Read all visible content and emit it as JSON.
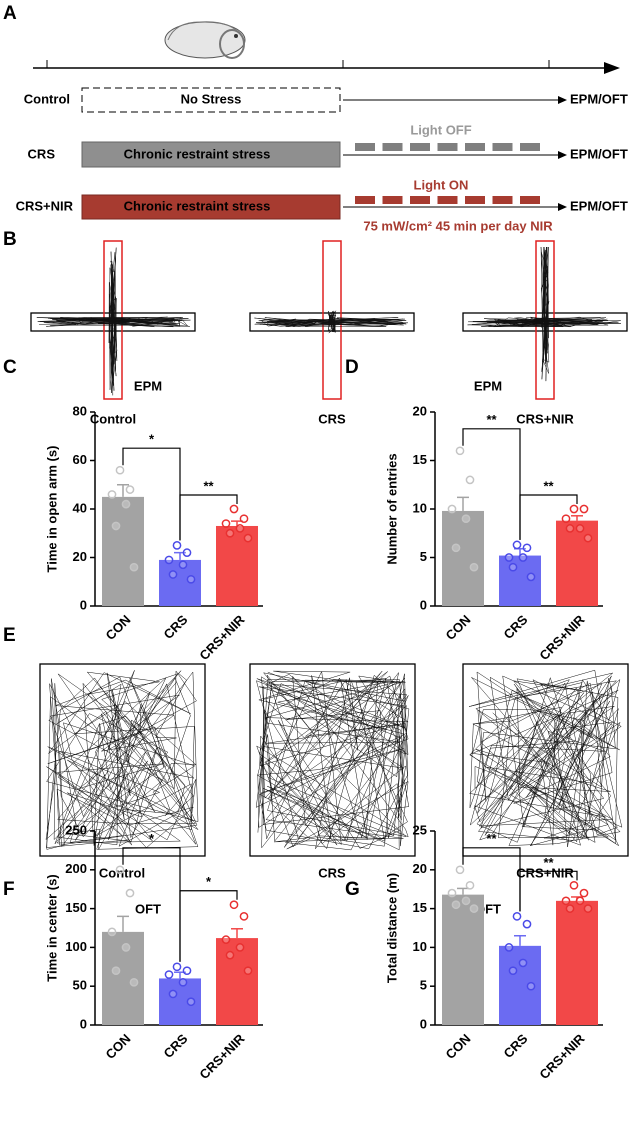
{
  "panels": {
    "a": "A",
    "b": "B",
    "c": "C",
    "d": "D",
    "e": "E",
    "f": "F",
    "g": "G"
  },
  "timeline": {
    "rows": [
      {
        "label": "Control",
        "bar_text": "No Stress",
        "end": "EPM/OFT"
      },
      {
        "label": "CRS",
        "bar_text": "Chronic restraint stress",
        "light": "Light OFF",
        "end": "EPM/OFT"
      },
      {
        "label": "CRS+NIR",
        "bar_text": "Chronic restraint stress",
        "light": "Light ON",
        "note": "75 mW/cm² 45 min per day NIR",
        "end": "EPM/OFT"
      }
    ]
  },
  "epm_tracks": {
    "labels": [
      "Control",
      "CRS",
      "CRS+NIR"
    ]
  },
  "oft_tracks": {
    "labels": [
      "Control",
      "CRS",
      "CRS+NIR"
    ]
  },
  "chart_data": [
    {
      "type": "bar",
      "title": "EPM",
      "y_label": "Time in open arm (s)",
      "categories": [
        "CON",
        "CRS",
        "CRS+NIR"
      ],
      "values": [
        45,
        19,
        33
      ],
      "errors": [
        5,
        3,
        2
      ],
      "points": [
        [
          56,
          48,
          46,
          42,
          33,
          16
        ],
        [
          25,
          22,
          19,
          17,
          13,
          11
        ],
        [
          40,
          36,
          34,
          32,
          30,
          28
        ]
      ],
      "colors": [
        "#a3a3a3",
        "#6b6bf2",
        "#f24848"
      ],
      "point_colors": [
        "#c4c4c4",
        "#4a4ae8",
        "#e83030"
      ],
      "ylim": [
        0,
        80
      ],
      "yticks": [
        0,
        20,
        40,
        60,
        80
      ],
      "significance": [
        "*",
        "**"
      ]
    },
    {
      "type": "bar",
      "title": "EPM",
      "y_label": "Number of entries",
      "categories": [
        "CON",
        "CRS",
        "CRS+NIR"
      ],
      "values": [
        9.8,
        5.2,
        8.8
      ],
      "errors": [
        1.4,
        0.7,
        0.5
      ],
      "points": [
        [
          16,
          13,
          10,
          9,
          6,
          4
        ],
        [
          6.3,
          6,
          5,
          5,
          4,
          3
        ],
        [
          10,
          10,
          9,
          8,
          8,
          7
        ]
      ],
      "colors": [
        "#a3a3a3",
        "#6b6bf2",
        "#f24848"
      ],
      "point_colors": [
        "#c4c4c4",
        "#4a4ae8",
        "#e83030"
      ],
      "ylim": [
        0,
        20
      ],
      "yticks": [
        0,
        5,
        10,
        15,
        20
      ],
      "significance": [
        "**",
        "**"
      ]
    },
    {
      "type": "bar",
      "title": "OFT",
      "y_label": "Time in center  (s)",
      "categories": [
        "CON",
        "CRS",
        "CRS+NIR"
      ],
      "values": [
        120,
        60,
        112
      ],
      "errors": [
        20,
        8,
        12
      ],
      "points": [
        [
          200,
          170,
          120,
          100,
          70,
          55
        ],
        [
          75,
          70,
          65,
          55,
          40,
          30
        ],
        [
          155,
          140,
          110,
          100,
          90,
          70
        ]
      ],
      "colors": [
        "#a3a3a3",
        "#6b6bf2",
        "#f24848"
      ],
      "point_colors": [
        "#c4c4c4",
        "#4a4ae8",
        "#e83030"
      ],
      "ylim": [
        0,
        250
      ],
      "yticks": [
        0,
        50,
        100,
        150,
        200,
        250
      ],
      "significance": [
        "*",
        "*"
      ]
    },
    {
      "type": "bar",
      "title": "OFT",
      "y_label": "Total distance  (m)",
      "categories": [
        "CON",
        "CRS",
        "CRS+NIR"
      ],
      "values": [
        16.8,
        10.2,
        16
      ],
      "errors": [
        0.8,
        1.3,
        0.5
      ],
      "points": [
        [
          20,
          18,
          17,
          16,
          15.5,
          15
        ],
        [
          14,
          13,
          10,
          8,
          7,
          5
        ],
        [
          18,
          17,
          16,
          16,
          15,
          15
        ]
      ],
      "colors": [
        "#a3a3a3",
        "#6b6bf2",
        "#f24848"
      ],
      "point_colors": [
        "#c4c4c4",
        "#4a4ae8",
        "#e83030"
      ],
      "ylim": [
        0,
        25
      ],
      "yticks": [
        0,
        5,
        10,
        15,
        20,
        25
      ],
      "significance": [
        "**",
        "**"
      ]
    }
  ]
}
